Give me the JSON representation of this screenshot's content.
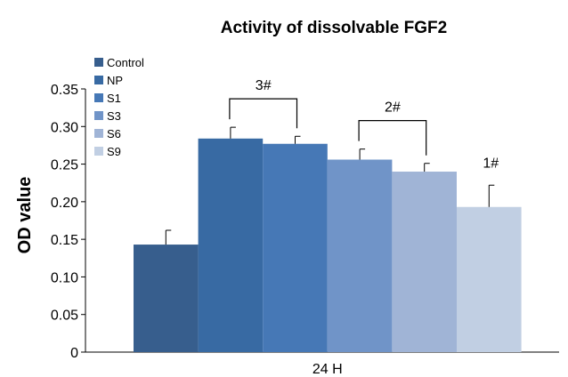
{
  "chart_data": {
    "type": "bar",
    "title": "Activity of dissolvable FGF2",
    "xlabel": "",
    "ylabel": "OD value",
    "categories": [
      "24 H"
    ],
    "ylim": [
      0,
      0.35
    ],
    "yticks": [
      "0",
      "0.05",
      "0.10",
      "0.15",
      "0.20",
      "0.25",
      "0.30",
      "0.35"
    ],
    "yticks_values": [
      0,
      0.05,
      0.1,
      0.15,
      0.2,
      0.25,
      0.3,
      0.35
    ],
    "grid": false,
    "legend_position": "top-left",
    "series": [
      {
        "name": "Control",
        "values": [
          0.143
        ],
        "error": [
          0.019
        ],
        "color": "#375e8d"
      },
      {
        "name": "NP",
        "values": [
          0.284
        ],
        "error": [
          0.015
        ],
        "color": "#386aa3"
      },
      {
        "name": "S1",
        "values": [
          0.277
        ],
        "error": [
          0.01
        ],
        "color": "#4678b6"
      },
      {
        "name": "S3",
        "values": [
          0.256
        ],
        "error": [
          0.014
        ],
        "color": "#7094c8"
      },
      {
        "name": "S6",
        "values": [
          0.24
        ],
        "error": [
          0.011
        ],
        "color": "#a0b4d6"
      },
      {
        "name": "S9",
        "values": [
          0.193
        ],
        "error": [
          0.029
        ],
        "color": "#c1cfe3"
      }
    ],
    "annotations": [
      {
        "text": "3#",
        "from_series": 1,
        "to_series": 2
      },
      {
        "text": "2#",
        "from_series": 3,
        "to_series": 4
      },
      {
        "text": "1#",
        "series": 5
      }
    ]
  }
}
